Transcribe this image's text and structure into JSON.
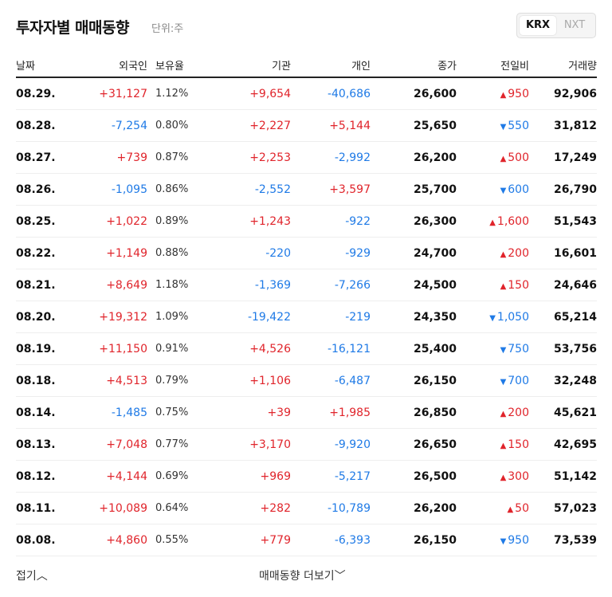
{
  "header": {
    "title": "투자자별 매매동향",
    "unit": "단위:주",
    "market_tabs": [
      "KRX",
      "NXT"
    ],
    "active_tab": "KRX"
  },
  "columns": [
    "날짜",
    "외국인",
    "보유율",
    "기관",
    "개인",
    "종가",
    "전일비",
    "거래량"
  ],
  "rows": [
    {
      "date": "08.29.",
      "foreign": "+31,127",
      "holding": "1.12%",
      "inst": "+9,654",
      "indiv": "-40,686",
      "close": "26,600",
      "dir": "up",
      "change": "950",
      "volume": "92,906"
    },
    {
      "date": "08.28.",
      "foreign": "-7,254",
      "holding": "0.80%",
      "inst": "+2,227",
      "indiv": "+5,144",
      "close": "25,650",
      "dir": "down",
      "change": "550",
      "volume": "31,812"
    },
    {
      "date": "08.27.",
      "foreign": "+739",
      "holding": "0.87%",
      "inst": "+2,253",
      "indiv": "-2,992",
      "close": "26,200",
      "dir": "up",
      "change": "500",
      "volume": "17,249"
    },
    {
      "date": "08.26.",
      "foreign": "-1,095",
      "holding": "0.86%",
      "inst": "-2,552",
      "indiv": "+3,597",
      "close": "25,700",
      "dir": "down",
      "change": "600",
      "volume": "26,790"
    },
    {
      "date": "08.25.",
      "foreign": "+1,022",
      "holding": "0.89%",
      "inst": "+1,243",
      "indiv": "-922",
      "close": "26,300",
      "dir": "up",
      "change": "1,600",
      "volume": "51,543"
    },
    {
      "date": "08.22.",
      "foreign": "+1,149",
      "holding": "0.88%",
      "inst": "-220",
      "indiv": "-929",
      "close": "24,700",
      "dir": "up",
      "change": "200",
      "volume": "16,601"
    },
    {
      "date": "08.21.",
      "foreign": "+8,649",
      "holding": "1.18%",
      "inst": "-1,369",
      "indiv": "-7,266",
      "close": "24,500",
      "dir": "up",
      "change": "150",
      "volume": "24,646"
    },
    {
      "date": "08.20.",
      "foreign": "+19,312",
      "holding": "1.09%",
      "inst": "-19,422",
      "indiv": "-219",
      "close": "24,350",
      "dir": "down",
      "change": "1,050",
      "volume": "65,214"
    },
    {
      "date": "08.19.",
      "foreign": "+11,150",
      "holding": "0.91%",
      "inst": "+4,526",
      "indiv": "-16,121",
      "close": "25,400",
      "dir": "down",
      "change": "750",
      "volume": "53,756"
    },
    {
      "date": "08.18.",
      "foreign": "+4,513",
      "holding": "0.79%",
      "inst": "+1,106",
      "indiv": "-6,487",
      "close": "26,150",
      "dir": "down",
      "change": "700",
      "volume": "32,248"
    },
    {
      "date": "08.14.",
      "foreign": "-1,485",
      "holding": "0.75%",
      "inst": "+39",
      "indiv": "+1,985",
      "close": "26,850",
      "dir": "up",
      "change": "200",
      "volume": "45,621"
    },
    {
      "date": "08.13.",
      "foreign": "+7,048",
      "holding": "0.77%",
      "inst": "+3,170",
      "indiv": "-9,920",
      "close": "26,650",
      "dir": "up",
      "change": "150",
      "volume": "42,695"
    },
    {
      "date": "08.12.",
      "foreign": "+4,144",
      "holding": "0.69%",
      "inst": "+969",
      "indiv": "-5,217",
      "close": "26,500",
      "dir": "up",
      "change": "300",
      "volume": "51,142"
    },
    {
      "date": "08.11.",
      "foreign": "+10,089",
      "holding": "0.64%",
      "inst": "+282",
      "indiv": "-10,789",
      "close": "26,200",
      "dir": "up",
      "change": "50",
      "volume": "57,023"
    },
    {
      "date": "08.08.",
      "foreign": "+4,860",
      "holding": "0.55%",
      "inst": "+779",
      "indiv": "-6,393",
      "close": "26,150",
      "dir": "down",
      "change": "950",
      "volume": "73,539"
    }
  ],
  "footer": {
    "fold_label": "접기",
    "more_label": "매매동향 더보기"
  },
  "icons": {
    "up": "▲",
    "down": "▼",
    "chevron_up": "︿",
    "chevron_down": "﹀"
  },
  "colors": {
    "up": "#e0242b",
    "down": "#1f7ae6"
  }
}
